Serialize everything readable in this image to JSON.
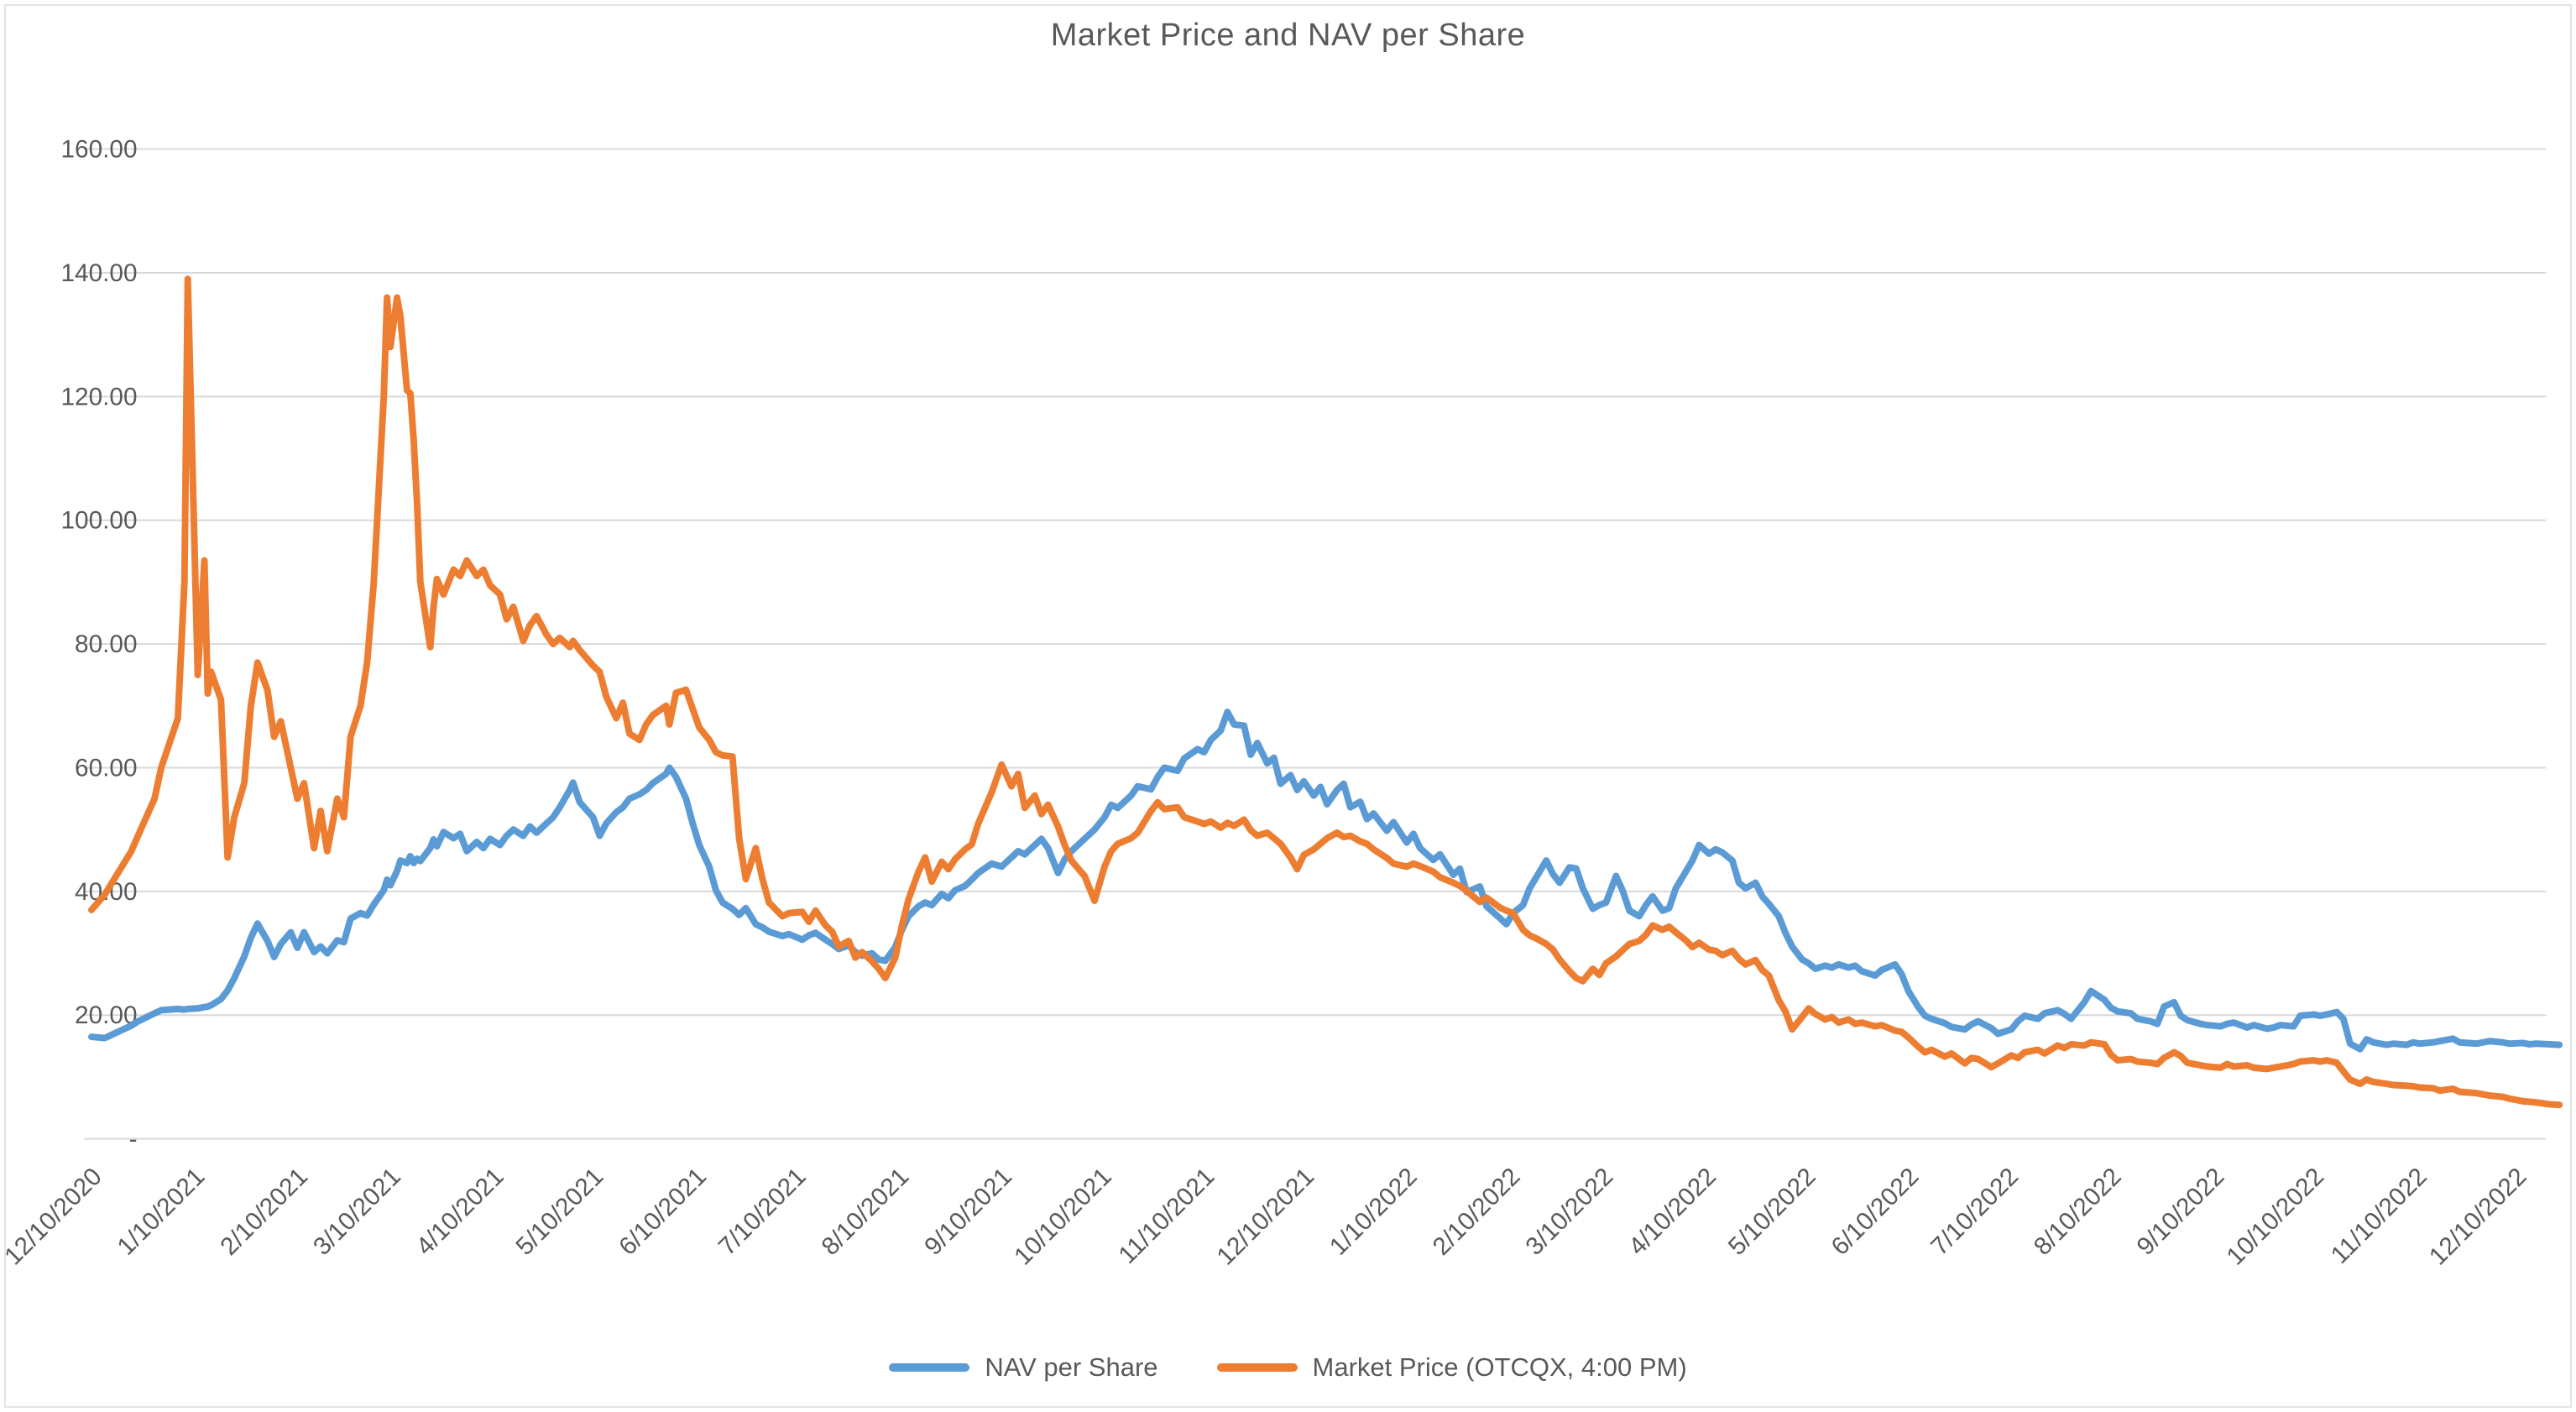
{
  "page": {
    "background_color": "#FFFFFF",
    "frame_border_color": "#E4E4E4"
  },
  "chart_data": {
    "type": "line",
    "title": "Market Price and NAV per Share",
    "xlabel": "",
    "ylabel": "",
    "grid": true,
    "legend_position": "bottom",
    "colors": {
      "grid": "#D9D9D9",
      "text": "#595959",
      "nav_blue": "#5B9BD5",
      "market_orange": "#ED7D31"
    },
    "y_axis": {
      "min": 0,
      "max": 160,
      "tick_step": 20,
      "ticks": [
        {
          "v": 160,
          "label": "160.00"
        },
        {
          "v": 140,
          "label": "140.00"
        },
        {
          "v": 120,
          "label": "120.00"
        },
        {
          "v": 100,
          "label": "100.00"
        },
        {
          "v": 80,
          "label": "80.00"
        },
        {
          "v": 60,
          "label": "60.00"
        },
        {
          "v": 40,
          "label": "40.00"
        },
        {
          "v": 20,
          "label": "20.00"
        },
        {
          "v": 0,
          "label": "-"
        }
      ]
    },
    "x_axis": {
      "tick_labels": [
        "12/10/2020",
        "1/10/2021",
        "2/10/2021",
        "3/10/2021",
        "4/10/2021",
        "5/10/2021",
        "6/10/2021",
        "7/10/2021",
        "8/10/2021",
        "9/10/2021",
        "10/10/2021",
        "11/10/2021",
        "12/10/2021",
        "1/10/2022",
        "2/10/2022",
        "3/10/2022",
        "4/10/2022",
        "5/10/2022",
        "6/10/2022",
        "7/10/2022",
        "8/10/2022",
        "9/10/2022",
        "10/10/2022",
        "11/10/2022",
        "12/10/2022"
      ],
      "label_rotation_deg": 45
    },
    "dates": [
      "12/10/2020",
      "12/14/2020",
      "12/18/2020",
      "12/22/2020",
      "12/24/2020",
      "12/29/2020",
      "12/31/2020",
      "1/5/2021",
      "1/7/2021",
      "1/8/2021",
      "1/11/2021",
      "1/13/2021",
      "1/14/2021",
      "1/15/2021",
      "1/18/2021",
      "1/20/2021",
      "1/22/2021",
      "1/25/2021",
      "1/27/2021",
      "1/29/2021",
      "2/1/2021",
      "2/3/2021",
      "2/5/2021",
      "2/8/2021",
      "2/10/2021",
      "2/12/2021",
      "2/15/2021",
      "2/17/2021",
      "2/19/2021",
      "2/22/2021",
      "2/24/2021",
      "2/26/2021",
      "3/1/2021",
      "3/3/2021",
      "3/5/2021",
      "3/8/2021",
      "3/9/2021",
      "3/10/2021",
      "3/12/2021",
      "3/13/2021",
      "3/15/2021",
      "3/16/2021",
      "3/17/2021",
      "3/18/2021",
      "3/19/2021",
      "3/22/2021",
      "3/23/2021",
      "3/24/2021",
      "3/26/2021",
      "3/29/2021",
      "3/31/2021",
      "4/2/2021",
      "4/5/2021",
      "4/7/2021",
      "4/9/2021",
      "4/12/2021",
      "4/14/2021",
      "4/16/2021",
      "4/19/2021",
      "4/21/2021",
      "4/23/2021",
      "4/26/2021",
      "4/28/2021",
      "4/30/2021",
      "5/3/2021",
      "5/4/2021",
      "5/6/2021",
      "5/10/2021",
      "5/12/2021",
      "5/14/2021",
      "5/17/2021",
      "5/19/2021",
      "5/21/2021",
      "5/24/2021",
      "5/26/2021",
      "5/28/2021",
      "6/1/2021",
      "6/2/2021",
      "6/4/2021",
      "6/7/2021",
      "6/9/2021",
      "6/11/2021",
      "6/14/2021",
      "6/16/2021",
      "6/18/2021",
      "6/21/2021",
      "6/23/2021",
      "6/25/2021",
      "6/28/2021",
      "6/30/2021",
      "7/2/2021",
      "7/6/2021",
      "7/8/2021",
      "7/12/2021",
      "7/14/2021",
      "7/16/2021",
      "7/19/2021",
      "7/21/2021",
      "7/23/2021",
      "7/26/2021",
      "7/28/2021",
      "7/30/2021",
      "8/2/2021",
      "8/4/2021",
      "8/6/2021",
      "8/9/2021",
      "8/11/2021",
      "8/13/2021",
      "8/16/2021",
      "8/18/2021",
      "8/20/2021",
      "8/23/2021",
      "8/25/2021",
      "8/27/2021",
      "8/30/2021",
      "9/1/2021",
      "9/3/2021",
      "9/7/2021",
      "9/10/2021",
      "9/13/2021",
      "9/15/2021",
      "9/17/2021",
      "9/20/2021",
      "9/22/2021",
      "9/24/2021",
      "9/27/2021",
      "9/29/2021",
      "10/1/2021",
      "10/5/2021",
      "10/8/2021",
      "10/11/2021",
      "10/13/2021",
      "10/15/2021",
      "10/19/2021",
      "10/21/2021",
      "10/25/2021",
      "10/27/2021",
      "10/29/2021",
      "11/2/2021",
      "11/4/2021",
      "11/8/2021",
      "11/10/2021",
      "11/12/2021",
      "11/15/2021",
      "11/17/2021",
      "11/19/2021",
      "11/22/2021",
      "11/24/2021",
      "11/26/2021",
      "11/29/2021",
      "12/1/2021",
      "12/3/2021",
      "12/6/2021",
      "12/8/2021",
      "12/10/2021",
      "12/13/2021",
      "12/15/2021",
      "12/17/2021",
      "12/20/2021",
      "12/22/2021",
      "12/24/2021",
      "12/27/2021",
      "12/29/2021",
      "12/31/2021",
      "1/4/2022",
      "1/6/2022",
      "1/10/2022",
      "1/12/2022",
      "1/14/2022",
      "1/18/2022",
      "1/20/2022",
      "1/24/2022",
      "1/26/2022",
      "1/28/2022",
      "2/1/2022",
      "2/3/2022",
      "2/7/2022",
      "2/9/2022",
      "2/11/2022",
      "2/14/2022",
      "2/16/2022",
      "2/18/2022",
      "2/21/2022",
      "2/23/2022",
      "2/25/2022",
      "2/28/2022",
      "3/2/2022",
      "3/4/2022",
      "3/7/2022",
      "3/9/2022",
      "3/11/2022",
      "3/14/2022",
      "3/16/2022",
      "3/18/2022",
      "3/21/2022",
      "3/23/2022",
      "3/25/2022",
      "3/28/2022",
      "3/30/2022",
      "4/1/2022",
      "4/4/2022",
      "4/6/2022",
      "4/8/2022",
      "4/11/2022",
      "4/13/2022",
      "4/15/2022",
      "4/18/2022",
      "4/20/2022",
      "4/22/2022",
      "4/25/2022",
      "4/27/2022",
      "4/29/2022",
      "5/2/2022",
      "5/4/2022",
      "5/6/2022",
      "5/9/2022",
      "5/11/2022",
      "5/13/2022",
      "5/16/2022",
      "5/18/2022",
      "5/20/2022",
      "5/23/2022",
      "5/25/2022",
      "5/27/2022",
      "5/31/2022",
      "6/2/2022",
      "6/6/2022",
      "6/8/2022",
      "6/10/2022",
      "6/13/2022",
      "6/15/2022",
      "6/17/2022",
      "6/21/2022",
      "6/23/2022",
      "6/27/2022",
      "6/29/2022",
      "7/1/2022",
      "7/5/2022",
      "7/7/2022",
      "7/11/2022",
      "7/13/2022",
      "7/15/2022",
      "7/19/2022",
      "7/21/2022",
      "7/25/2022",
      "7/27/2022",
      "7/29/2022",
      "8/2/2022",
      "8/4/2022",
      "8/8/2022",
      "8/10/2022",
      "8/12/2022",
      "8/16/2022",
      "8/18/2022",
      "8/22/2022",
      "8/24/2022",
      "8/26/2022",
      "8/29/2022",
      "8/31/2022",
      "9/2/2022",
      "9/6/2022",
      "9/8/2022",
      "9/12/2022",
      "9/14/2022",
      "9/16/2022",
      "9/20/2022",
      "9/22/2022",
      "9/26/2022",
      "9/28/2022",
      "9/30/2022",
      "10/4/2022",
      "10/6/2022",
      "10/10/2022",
      "10/12/2022",
      "10/14/2022",
      "10/17/2022",
      "10/19/2022",
      "10/21/2022",
      "10/24/2022",
      "10/26/2022",
      "10/28/2022",
      "11/1/2022",
      "11/3/2022",
      "11/7/2022",
      "11/9/2022",
      "11/11/2022",
      "11/15/2022",
      "11/17/2022",
      "11/21/2022",
      "11/23/2022",
      "11/28/2022",
      "11/30/2022",
      "12/2/2022",
      "12/6/2022",
      "12/8/2022",
      "12/12/2022",
      "12/14/2022",
      "12/16/2022",
      "12/20/2022",
      "12/23/2022"
    ],
    "series": [
      {
        "name": "NAV per Share",
        "color": "#5B9BD5",
        "values": [
          16.5,
          16.3,
          17.3,
          18.3,
          19.0,
          20.3,
          20.8,
          21.0,
          20.9,
          21.0,
          21.1,
          21.3,
          21.4,
          21.6,
          22.6,
          24.0,
          26.0,
          29.5,
          32.5,
          34.8,
          32.0,
          29.4,
          31.5,
          33.4,
          30.9,
          33.4,
          30.2,
          31.1,
          30.0,
          32.1,
          31.8,
          35.6,
          36.5,
          36.1,
          37.9,
          40.2,
          41.9,
          41.0,
          43.3,
          45.0,
          44.6,
          45.7,
          44.6,
          45.3,
          44.9,
          47.0,
          48.4,
          47.3,
          49.6,
          48.6,
          49.3,
          46.5,
          48.0,
          47.0,
          48.5,
          47.5,
          49.0,
          50.0,
          49.0,
          50.5,
          49.5,
          51.0,
          52.0,
          53.6,
          56.4,
          57.6,
          54.4,
          52.0,
          49.0,
          51.0,
          52.8,
          53.6,
          55.0,
          55.7,
          56.4,
          57.5,
          59.0,
          60.0,
          58.5,
          55.0,
          51.0,
          47.5,
          44.0,
          40.2,
          38.2,
          37.2,
          36.2,
          37.3,
          34.7,
          34.2,
          33.5,
          32.8,
          33.1,
          32.2,
          32.9,
          33.3,
          32.2,
          31.5,
          30.7,
          31.3,
          30.2,
          29.6,
          30.0,
          29.0,
          28.8,
          31.0,
          33.8,
          36.0,
          37.6,
          38.2,
          37.8,
          39.6,
          38.9,
          40.2,
          40.9,
          41.9,
          43.0,
          44.5,
          44.0,
          45.5,
          46.5,
          46.0,
          47.5,
          48.5,
          47.0,
          43.0,
          45.2,
          46.5,
          48.5,
          50.0,
          52.0,
          54.0,
          53.5,
          55.5,
          57.0,
          56.5,
          58.5,
          60.0,
          59.5,
          61.5,
          63.0,
          62.5,
          64.5,
          66.0,
          69.0,
          67.0,
          66.8,
          62.1,
          64.0,
          60.7,
          61.6,
          57.4,
          58.8,
          56.4,
          57.8,
          55.5,
          56.9,
          54.1,
          56.4,
          57.4,
          53.6,
          54.5,
          51.7,
          52.6,
          49.8,
          51.2,
          47.9,
          49.3,
          47.0,
          45.1,
          46.0,
          42.7,
          43.7,
          39.9,
          40.8,
          37.6,
          35.7,
          34.7,
          36.5,
          37.8,
          40.5,
          42.3,
          45.0,
          42.8,
          41.4,
          43.9,
          43.7,
          40.5,
          37.2,
          37.8,
          38.2,
          42.5,
          40.1,
          36.9,
          36.0,
          37.8,
          39.2,
          36.9,
          37.3,
          40.5,
          43.2,
          45.0,
          47.5,
          46.1,
          46.8,
          46.3,
          45.0,
          41.4,
          40.5,
          41.4,
          39.2,
          38.0,
          36.0,
          33.3,
          31.1,
          29.0,
          28.4,
          27.5,
          28.0,
          27.7,
          28.2,
          27.7,
          28.0,
          27.1,
          26.4,
          27.3,
          28.2,
          26.6,
          23.9,
          21.3,
          19.9,
          19.4,
          18.7,
          18.1,
          17.7,
          18.5,
          19.0,
          17.9,
          17.0,
          17.7,
          19.0,
          19.9,
          19.4,
          20.3,
          20.8,
          20.2,
          19.4,
          22.1,
          23.9,
          22.5,
          21.2,
          20.6,
          20.3,
          19.4,
          19.0,
          18.6,
          21.4,
          22.1,
          19.9,
          19.2,
          18.6,
          18.4,
          18.2,
          18.6,
          18.8,
          18.0,
          18.4,
          17.8,
          18.0,
          18.4,
          18.2,
          19.9,
          20.1,
          19.9,
          20.1,
          20.5,
          19.4,
          15.4,
          14.5,
          16.1,
          15.6,
          15.2,
          15.4,
          15.2,
          15.6,
          15.4,
          15.6,
          15.8,
          16.2,
          15.6,
          15.4,
          15.6,
          15.8,
          15.6,
          15.4,
          15.5,
          15.3,
          15.4,
          15.3,
          15.2
        ]
      },
      {
        "name": "Market Price (OTCQX, 4:00 PM)",
        "color": "#ED7D31",
        "values": [
          37.0,
          39.5,
          43.0,
          46.5,
          49.0,
          55.0,
          60.0,
          68.0,
          90.0,
          139.0,
          75.0,
          93.5,
          72.0,
          75.5,
          71.0,
          45.5,
          52.0,
          57.5,
          70.0,
          77.0,
          72.5,
          65.0,
          67.5,
          60.0,
          55.0,
          57.5,
          47.0,
          53.0,
          46.5,
          55.0,
          52.0,
          65.0,
          70.0,
          77.0,
          90.0,
          120.0,
          136.0,
          128.0,
          136.0,
          133.0,
          121.0,
          120.5,
          113.0,
          103.0,
          90.0,
          79.5,
          86.0,
          90.5,
          88.0,
          92.0,
          91.0,
          93.5,
          91.0,
          92.0,
          89.5,
          88.0,
          84.0,
          86.0,
          80.5,
          83.0,
          84.5,
          81.5,
          80.0,
          81.0,
          79.5,
          80.5,
          79.0,
          76.5,
          75.5,
          71.5,
          68.0,
          70.5,
          65.5,
          64.5,
          67.0,
          68.5,
          70.0,
          67.0,
          72.1,
          72.6,
          69.5,
          66.5,
          64.5,
          62.5,
          62.0,
          61.8,
          48.6,
          42.0,
          47.0,
          42.0,
          38.2,
          36.0,
          36.5,
          36.7,
          35.1,
          36.9,
          34.5,
          33.5,
          31.1,
          32.0,
          29.3,
          30.2,
          28.7,
          27.5,
          26.0,
          29.3,
          34.5,
          38.7,
          43.2,
          45.5,
          41.6,
          44.8,
          43.6,
          45.2,
          46.8,
          47.6,
          51.0,
          56.0,
          60.5,
          57.0,
          59.0,
          53.5,
          55.5,
          52.5,
          54.0,
          50.5,
          47.5,
          45.0,
          42.5,
          38.5,
          44.0,
          46.5,
          47.7,
          48.6,
          49.5,
          53.0,
          54.4,
          53.3,
          53.6,
          52.0,
          51.3,
          50.9,
          51.3,
          50.3,
          51.1,
          50.6,
          51.6,
          49.9,
          49.0,
          49.5,
          48.6,
          47.7,
          45.5,
          43.6,
          45.9,
          46.8,
          47.7,
          48.6,
          49.5,
          48.8,
          49.0,
          48.1,
          47.7,
          46.8,
          45.4,
          44.5,
          44.0,
          44.5,
          44.1,
          43.2,
          42.3,
          41.4,
          40.9,
          40.1,
          38.3,
          39.0,
          37.4,
          36.9,
          36.5,
          33.8,
          32.9,
          32.4,
          31.5,
          30.6,
          29.0,
          27.1,
          26.0,
          25.5,
          27.5,
          26.5,
          28.4,
          29.5,
          30.5,
          31.5,
          32.0,
          33.0,
          34.5,
          33.8,
          34.3,
          33.4,
          32.1,
          31.0,
          31.7,
          30.6,
          30.4,
          29.7,
          30.4,
          29.1,
          28.2,
          28.9,
          27.3,
          26.4,
          22.4,
          20.6,
          17.7,
          19.7,
          21.1,
          20.2,
          19.3,
          19.7,
          18.8,
          19.3,
          18.6,
          18.8,
          18.2,
          18.4,
          17.5,
          17.3,
          16.4,
          14.9,
          14.0,
          14.4,
          13.3,
          13.8,
          12.2,
          13.1,
          12.9,
          11.6,
          12.2,
          13.5,
          13.1,
          14.0,
          14.4,
          13.8,
          15.1,
          14.7,
          15.3,
          15.1,
          15.6,
          15.3,
          13.6,
          12.7,
          12.9,
          12.5,
          12.3,
          12.1,
          13.1,
          14.0,
          13.4,
          12.3,
          11.9,
          11.7,
          11.5,
          12.1,
          11.7,
          11.9,
          11.5,
          11.3,
          11.5,
          11.7,
          12.1,
          12.5,
          12.7,
          12.5,
          12.7,
          12.3,
          10.9,
          9.6,
          8.9,
          9.6,
          9.2,
          8.9,
          8.7,
          8.6,
          8.5,
          8.3,
          8.2,
          7.8,
          8.1,
          7.6,
          7.4,
          7.2,
          7.0,
          6.8,
          6.5,
          6.1,
          6.0,
          5.9,
          5.6,
          5.5
        ]
      }
    ]
  }
}
